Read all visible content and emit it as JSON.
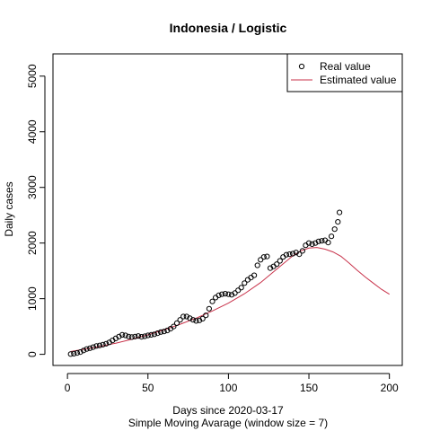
{
  "chart_data": {
    "type": "scatter",
    "title": "Indonesia / Logistic",
    "xlabel": "Days since 2020-03-17",
    "subtitle": "Simple Moving Avarage (window size = 7)",
    "ylabel": "Daily cases",
    "xlim": [
      -9,
      208
    ],
    "ylim": [
      -200,
      5400
    ],
    "x_ticks": [
      0,
      50,
      100,
      150,
      200
    ],
    "y_ticks": [
      0,
      1000,
      2000,
      3000,
      4000,
      5000
    ],
    "legend": {
      "position": "top-right",
      "entries": [
        {
          "label": "Real value",
          "symbol": "open-circle"
        },
        {
          "label": "Estimated value",
          "symbol": "line"
        }
      ]
    },
    "series": [
      {
        "name": "Real value",
        "color": "#000000",
        "points": [
          [
            2,
            5
          ],
          [
            4,
            12
          ],
          [
            6,
            25
          ],
          [
            8,
            40
          ],
          [
            10,
            70
          ],
          [
            12,
            95
          ],
          [
            14,
            110
          ],
          [
            16,
            130
          ],
          [
            18,
            150
          ],
          [
            20,
            160
          ],
          [
            22,
            175
          ],
          [
            24,
            190
          ],
          [
            26,
            215
          ],
          [
            28,
            250
          ],
          [
            30,
            285
          ],
          [
            32,
            320
          ],
          [
            34,
            350
          ],
          [
            36,
            340
          ],
          [
            38,
            320
          ],
          [
            40,
            310
          ],
          [
            42,
            320
          ],
          [
            44,
            330
          ],
          [
            46,
            315
          ],
          [
            48,
            325
          ],
          [
            50,
            340
          ],
          [
            52,
            350
          ],
          [
            54,
            360
          ],
          [
            56,
            380
          ],
          [
            58,
            400
          ],
          [
            60,
            410
          ],
          [
            62,
            430
          ],
          [
            64,
            460
          ],
          [
            66,
            500
          ],
          [
            68,
            560
          ],
          [
            70,
            620
          ],
          [
            72,
            680
          ],
          [
            74,
            680
          ],
          [
            76,
            650
          ],
          [
            78,
            620
          ],
          [
            80,
            600
          ],
          [
            82,
            610
          ],
          [
            84,
            640
          ],
          [
            86,
            700
          ],
          [
            88,
            820
          ],
          [
            90,
            950
          ],
          [
            92,
            1020
          ],
          [
            94,
            1060
          ],
          [
            96,
            1080
          ],
          [
            98,
            1090
          ],
          [
            100,
            1080
          ],
          [
            102,
            1070
          ],
          [
            104,
            1100
          ],
          [
            106,
            1150
          ],
          [
            108,
            1200
          ],
          [
            110,
            1280
          ],
          [
            112,
            1340
          ],
          [
            114,
            1380
          ],
          [
            116,
            1420
          ],
          [
            118,
            1600
          ],
          [
            120,
            1700
          ],
          [
            122,
            1750
          ],
          [
            124,
            1760
          ],
          [
            126,
            1550
          ],
          [
            128,
            1580
          ],
          [
            130,
            1620
          ],
          [
            132,
            1680
          ],
          [
            134,
            1750
          ],
          [
            136,
            1790
          ],
          [
            138,
            1800
          ],
          [
            140,
            1810
          ],
          [
            142,
            1830
          ],
          [
            144,
            1800
          ],
          [
            146,
            1860
          ],
          [
            148,
            1960
          ],
          [
            150,
            2000
          ],
          [
            152,
            1980
          ],
          [
            154,
            2000
          ],
          [
            156,
            2030
          ],
          [
            158,
            2040
          ],
          [
            160,
            2050
          ],
          [
            162,
            2010
          ],
          [
            164,
            2120
          ],
          [
            166,
            2250
          ],
          [
            168,
            2380
          ],
          [
            169,
            2550
          ]
        ]
      },
      {
        "name": "Estimated value",
        "color": "#c8324a",
        "points": [
          [
            2,
            50
          ],
          [
            10,
            90
          ],
          [
            20,
            140
          ],
          [
            30,
            200
          ],
          [
            40,
            270
          ],
          [
            50,
            350
          ],
          [
            60,
            440
          ],
          [
            70,
            540
          ],
          [
            80,
            650
          ],
          [
            90,
            780
          ],
          [
            100,
            920
          ],
          [
            110,
            1090
          ],
          [
            120,
            1290
          ],
          [
            130,
            1530
          ],
          [
            140,
            1770
          ],
          [
            145,
            1860
          ],
          [
            150,
            1910
          ],
          [
            155,
            1920
          ],
          [
            160,
            1890
          ],
          [
            165,
            1840
          ],
          [
            170,
            1760
          ],
          [
            175,
            1640
          ],
          [
            180,
            1510
          ],
          [
            185,
            1390
          ],
          [
            190,
            1280
          ],
          [
            195,
            1170
          ],
          [
            200,
            1080
          ]
        ]
      }
    ]
  }
}
